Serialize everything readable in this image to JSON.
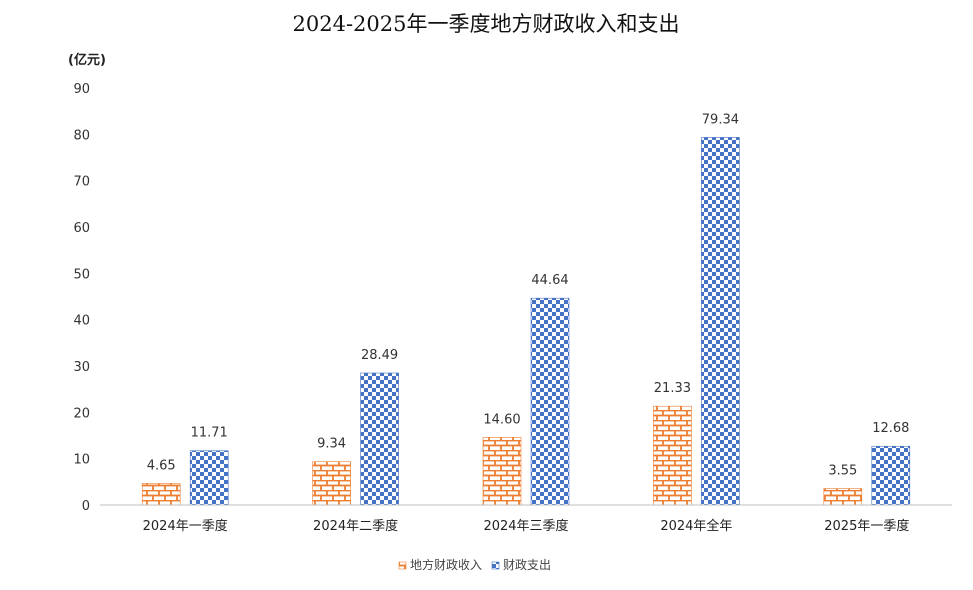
{
  "chart_data": {
    "type": "bar",
    "title": "2024-2025年一季度地方财政收入和支出",
    "unit_label": "(亿元)",
    "categories": [
      "2024年一季度",
      "2024年二季度",
      "2024年三季度",
      "2024年全年",
      "2025年一季度"
    ],
    "series": [
      {
        "name": "地方财政收入",
        "values": [
          4.65,
          9.34,
          14.6,
          21.33,
          3.55
        ],
        "labels": [
          "4.65",
          "9.34",
          "14.60",
          "21.33",
          "3.55"
        ],
        "color": "#ED7D31",
        "pattern": "brick"
      },
      {
        "name": "财政支出",
        "values": [
          11.71,
          28.49,
          44.64,
          79.34,
          12.68
        ],
        "labels": [
          "11.71",
          "28.49",
          "44.64",
          "79.34",
          "12.68"
        ],
        "color": "#4472C4",
        "pattern": "checker"
      }
    ],
    "ylim": [
      0,
      90
    ],
    "yticks": [
      0,
      10,
      20,
      30,
      40,
      50,
      60,
      70,
      80,
      90
    ],
    "grid": false,
    "legend_position": "bottom"
  }
}
